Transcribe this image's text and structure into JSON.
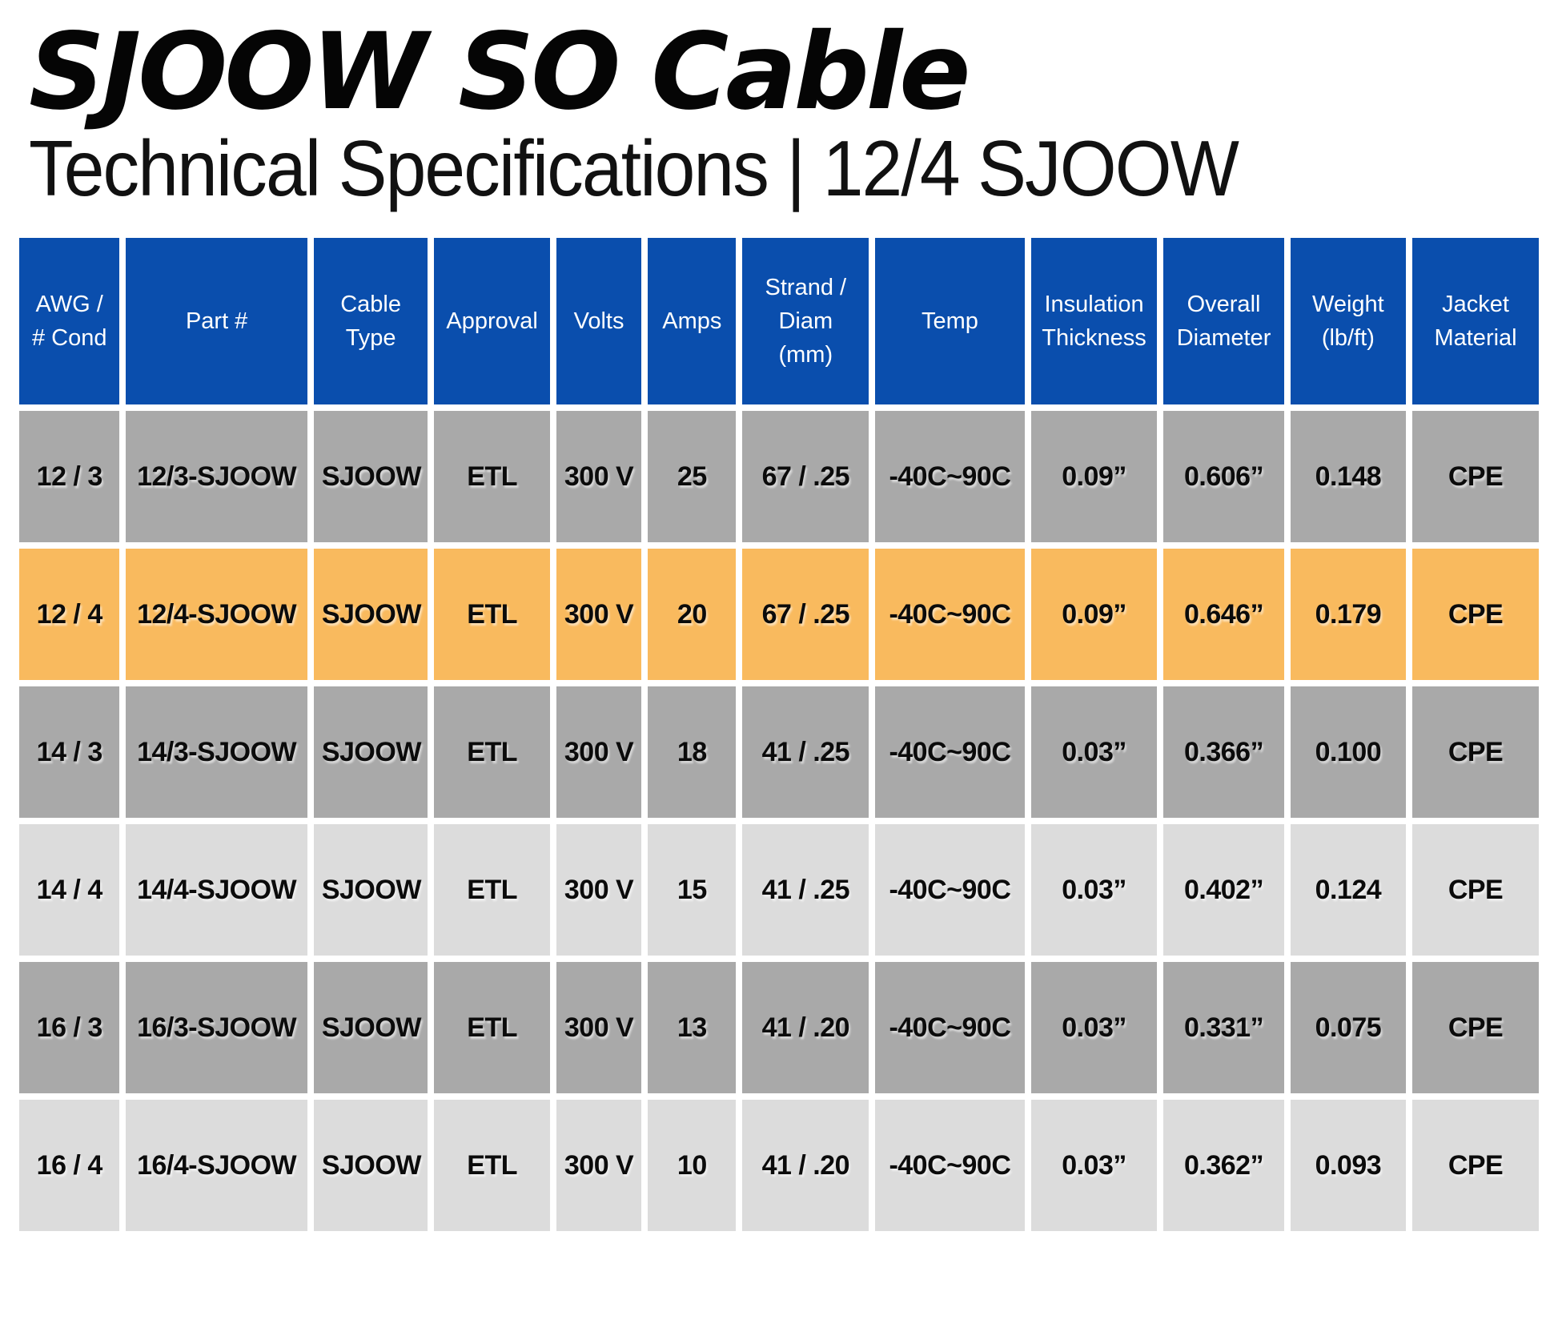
{
  "page": {
    "title": "SJOOW SO Cable",
    "subtitle": "Technical Specifications | 12/4 SJOOW"
  },
  "colors": {
    "header_blue": "#0a4ead",
    "row_gray": "#a9a9a9",
    "row_lightgray": "#dcdcdc",
    "row_highlight_orange": "#f9ba5e",
    "header_text": "#ffffff",
    "body_text": "#0b0b0b"
  },
  "table": {
    "columns": [
      "AWG / # Cond",
      "Part #",
      "Cable Type",
      "Approval",
      "Volts",
      "Amps",
      "Strand / Diam (mm)",
      "Temp",
      "Insulation Thickness",
      "Overall Diameter",
      "Weight (lb/ft)",
      "Jacket Material"
    ],
    "rows": [
      {
        "shade": "gray",
        "highlighted": false,
        "cells": [
          "12 / 3",
          "12/3-SJOOW",
          "SJOOW",
          "ETL",
          "300 V",
          "25",
          "67 / .25",
          "-40C~90C",
          "0.09”",
          "0.606”",
          "0.148",
          "CPE"
        ]
      },
      {
        "shade": "highlight",
        "highlighted": true,
        "cells": [
          "12 / 4",
          "12/4-SJOOW",
          "SJOOW",
          "ETL",
          "300 V",
          "20",
          "67 / .25",
          "-40C~90C",
          "0.09”",
          "0.646”",
          "0.179",
          "CPE"
        ]
      },
      {
        "shade": "gray",
        "highlighted": false,
        "cells": [
          "14 / 3",
          "14/3-SJOOW",
          "SJOOW",
          "ETL",
          "300 V",
          "18",
          "41 / .25",
          "-40C~90C",
          "0.03”",
          "0.366”",
          "0.100",
          "CPE"
        ]
      },
      {
        "shade": "lightgray",
        "highlighted": false,
        "cells": [
          "14 / 4",
          "14/4-SJOOW",
          "SJOOW",
          "ETL",
          "300 V",
          "15",
          "41 / .25",
          "-40C~90C",
          "0.03”",
          "0.402”",
          "0.124",
          "CPE"
        ]
      },
      {
        "shade": "gray",
        "highlighted": false,
        "cells": [
          "16 / 3",
          "16/3-SJOOW",
          "SJOOW",
          "ETL",
          "300 V",
          "13",
          "41 / .20",
          "-40C~90C",
          "0.03”",
          "0.331”",
          "0.075",
          "CPE"
        ]
      },
      {
        "shade": "lightgray",
        "highlighted": false,
        "cells": [
          "16 / 4",
          "16/4-SJOOW",
          "SJOOW",
          "ETL",
          "300 V",
          "10",
          "41 / .20",
          "-40C~90C",
          "0.03”",
          "0.362”",
          "0.093",
          "CPE"
        ]
      }
    ]
  }
}
